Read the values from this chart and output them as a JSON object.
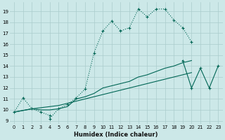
{
  "xlabel": "Humidex (Indice chaleur)",
  "bg_color": "#cce8e8",
  "grid_color": "#aacccc",
  "line_color": "#006655",
  "xlim": [
    -0.5,
    23.5
  ],
  "ylim": [
    8.7,
    19.8
  ],
  "yticks": [
    9,
    10,
    11,
    12,
    13,
    14,
    15,
    16,
    17,
    18,
    19
  ],
  "xticks": [
    0,
    1,
    2,
    3,
    4,
    5,
    6,
    7,
    8,
    9,
    10,
    11,
    12,
    13,
    14,
    15,
    16,
    17,
    18,
    19,
    20,
    21,
    22,
    23
  ],
  "curve1_x": [
    0,
    1,
    2,
    3,
    4,
    4,
    5,
    6,
    7,
    8,
    9,
    10,
    11,
    12,
    13,
    14,
    15,
    16,
    17,
    18,
    19,
    20
  ],
  "curve1_y": [
    9.8,
    11.1,
    10.1,
    9.8,
    9.5,
    9.2,
    10.1,
    10.5,
    11.1,
    11.9,
    15.2,
    17.2,
    18.1,
    17.2,
    17.5,
    19.2,
    18.5,
    19.2,
    19.2,
    18.2,
    17.5,
    16.2
  ],
  "curve2_x": [
    0,
    2,
    3,
    4,
    5,
    6,
    7,
    8,
    9,
    10,
    11,
    12,
    13,
    14,
    15,
    16,
    17,
    18,
    19,
    20
  ],
  "curve2_y": [
    9.8,
    10.1,
    10.0,
    10.0,
    10.1,
    10.3,
    11.0,
    11.2,
    11.5,
    12.0,
    12.2,
    12.4,
    12.6,
    13.0,
    13.2,
    13.5,
    13.8,
    14.0,
    14.3,
    14.5
  ],
  "curve3_x": [
    0,
    2,
    3,
    4,
    5,
    6,
    7,
    8,
    9,
    10,
    11,
    12,
    13,
    14,
    15,
    16,
    17,
    18,
    19,
    20
  ],
  "curve3_y": [
    9.8,
    10.1,
    10.2,
    10.3,
    10.4,
    10.6,
    10.8,
    11.0,
    11.2,
    11.4,
    11.6,
    11.8,
    12.0,
    12.2,
    12.4,
    12.6,
    12.8,
    13.0,
    13.2,
    13.4
  ],
  "curve4_x": [
    19,
    20,
    21,
    22,
    23
  ],
  "curve4_y": [
    14.5,
    12.0,
    13.8,
    12.0,
    14.0
  ]
}
